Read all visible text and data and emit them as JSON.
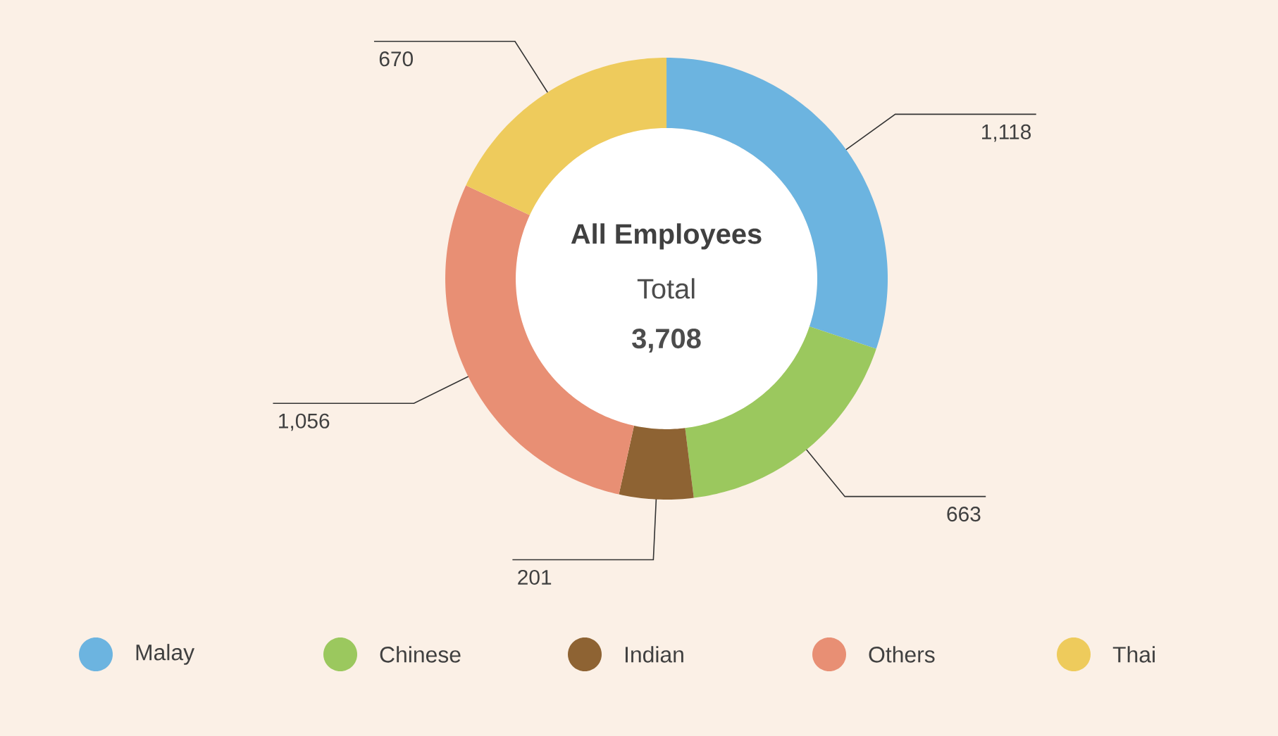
{
  "chart_data": {
    "type": "donut",
    "title": "All Employees",
    "annotations": [
      "Total",
      "3,708"
    ],
    "categories": [
      "Malay",
      "Chinese",
      "Indian",
      "Others",
      "Thai"
    ],
    "values": [
      1118,
      663,
      201,
      1056,
      670
    ],
    "value_labels": [
      "1,118",
      "663",
      "201",
      "1,056",
      "670"
    ],
    "colors": [
      "#6cb4e0",
      "#9bc85e",
      "#8e6333",
      "#e88f74",
      "#eecb5c"
    ],
    "legend": "bottom"
  }
}
